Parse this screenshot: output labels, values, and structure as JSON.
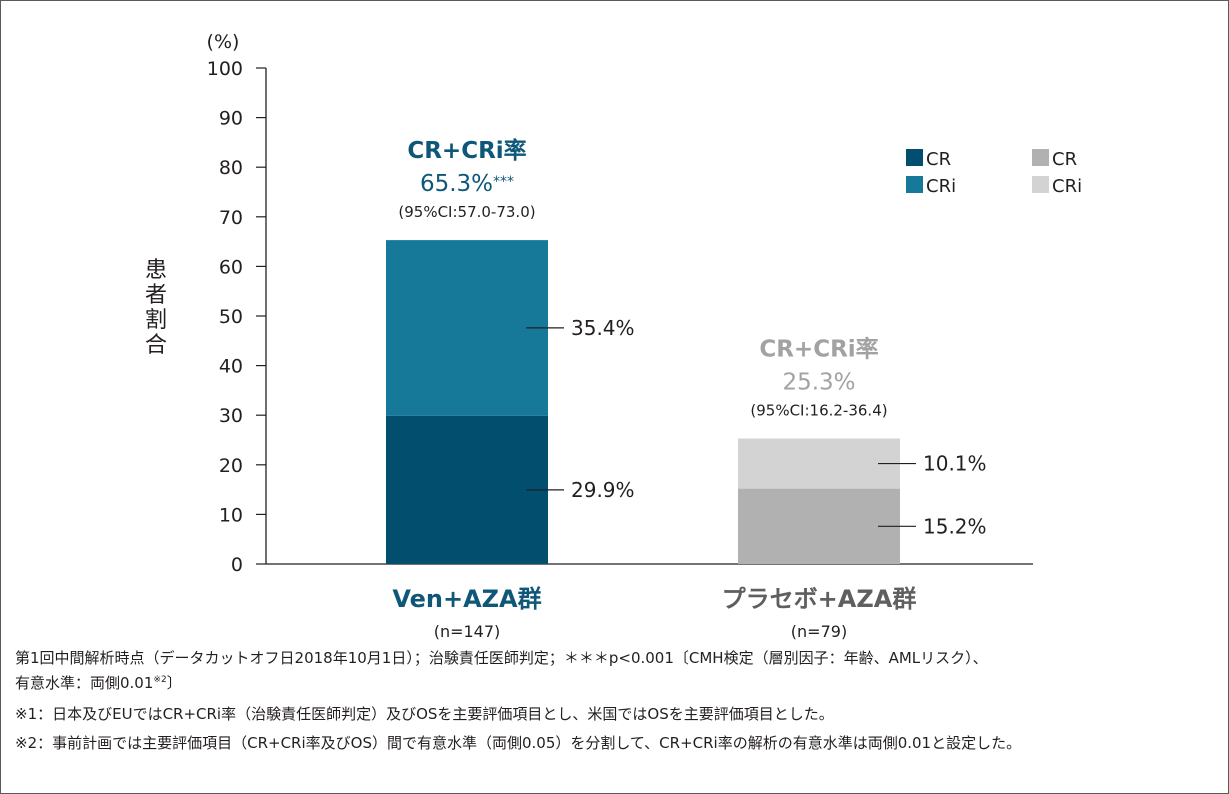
{
  "chart_data": {
    "type": "bar",
    "stacked": true,
    "unit_label": "(%)",
    "ylabel": "患者割合",
    "ylim": [
      0,
      100
    ],
    "yticks": [
      0,
      10,
      20,
      30,
      40,
      50,
      60,
      70,
      80,
      90,
      100
    ],
    "grid": false,
    "categories": [
      {
        "name": "Ven+AZA群",
        "n": "(n=147)"
      },
      {
        "name": "プラセボ+AZA群",
        "n": "(n=79)"
      }
    ],
    "series": [
      {
        "name": "CR",
        "group": "Ven+AZA群",
        "values": [
          29.9,
          null
        ],
        "label": "29.9%",
        "color": "#024e6e"
      },
      {
        "name": "CRi",
        "group": "Ven+AZA群",
        "values": [
          35.4,
          null
        ],
        "label": "35.4%",
        "color": "#17799a"
      },
      {
        "name": "CR",
        "group": "プラセボ+AZA群",
        "values": [
          null,
          15.2
        ],
        "label": "15.2%",
        "color": "#b1b1b1"
      },
      {
        "name": "CRi",
        "group": "プラセボ+AZA群",
        "values": [
          null,
          10.1
        ],
        "label": "10.1%",
        "color": "#d3d3d3"
      }
    ],
    "totals": [
      {
        "title": "CR+CRi率",
        "value": "65.3%",
        "sig": "***",
        "ci": "(95%CI:57.0-73.0)",
        "color": "#0f5778"
      },
      {
        "title": "CR+CRi率",
        "value": "25.3%",
        "sig": "",
        "ci": "(95%CI:16.2-36.4)",
        "color": "#a2a2a2"
      }
    ],
    "legend": {
      "placement": "top-right",
      "columns": [
        [
          {
            "label": "CR",
            "color": "#024e6e"
          },
          {
            "label": "CRi",
            "color": "#17799a"
          }
        ],
        [
          {
            "label": "CR",
            "color": "#b1b1b1"
          },
          {
            "label": "CRi",
            "color": "#d3d3d3"
          }
        ]
      ]
    },
    "category_colors": [
      "#0f5778",
      "#5f5f5f"
    ]
  },
  "notes": {
    "line1": "第1回中間解析時点（データカットオフ日2018年10月1日）；治験責任医師判定；＊＊＊p<0.001〔CMH検定（層別因子：年齢、AMLリスク）、",
    "line2_main": "有意水準：両側0.01",
    "line2_sup": "※2",
    "line2_end": "〕",
    "line3": "※1：日本及びEUではCR+CRi率（治験責任医師判定）及びOSを主要評価項目とし、米国ではOSを主要評価項目とした。",
    "line4": "※2：事前計画では主要評価項目（CR+CRi率及びOS）間で有意水準（両側0.05）を分割して、CR+CRi率の解析の有意水準は両側0.01と設定した。"
  }
}
